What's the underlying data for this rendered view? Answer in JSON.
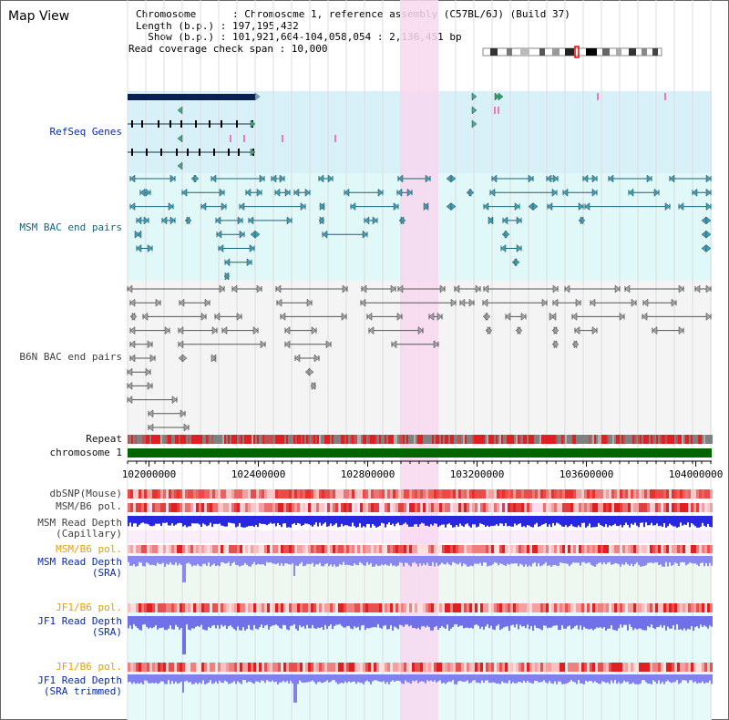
{
  "page": {
    "title": "Map View"
  },
  "info": {
    "chromosome": "Chromosome      : Chromosome 1, reference assembly (C57BL/6J) (Build 37)",
    "length": "Length (b.p.) : 197,195,432",
    "show": "  Show (b.p.) : 101,921,604-104,058,054 : 2,136,451 bp",
    "coverage": "Read coverage check span : 10,000"
  },
  "tracks": {
    "refseq": "RefSeq Genes",
    "msm_bac": "MSM BAC end pairs",
    "b6n_bac": "B6N BAC end pairs",
    "repeat": "Repeat",
    "chromosome": "chromosome 1",
    "dbsnp": "dbSNP(Mouse)",
    "msm_pol": "MSM/B6 pol.",
    "msm_depth_cap": "MSM Read Depth\n(Capillary)",
    "msm_pol2": "MSM/B6 pol.",
    "msm_depth_sra": "MSM Read Depth\n(SRA)",
    "jf1_pol": "JF1/B6 pol.",
    "jf1_depth_sra": "JF1 Read Depth\n(SRA)",
    "jf1_pol2": "JF1/B6 pol.",
    "jf1_depth_trim": "JF1 Read Depth\n(SRA trimmed)"
  },
  "axis": {
    "ticks": [
      "102000000",
      "102400000",
      "102800000",
      "103200000",
      "103600000",
      "104000000"
    ],
    "range": [
      101921604,
      104058054
    ]
  },
  "colors": {
    "refseq_bg": "#d8f0f8",
    "msm_bg": "#e0f8f8",
    "b6n_bg": "#f4f4f4",
    "highlight": "#f8d8f0",
    "chromosome": "#006600",
    "depth_blue": "#2020e0",
    "depth_light": "#7878f0"
  }
}
